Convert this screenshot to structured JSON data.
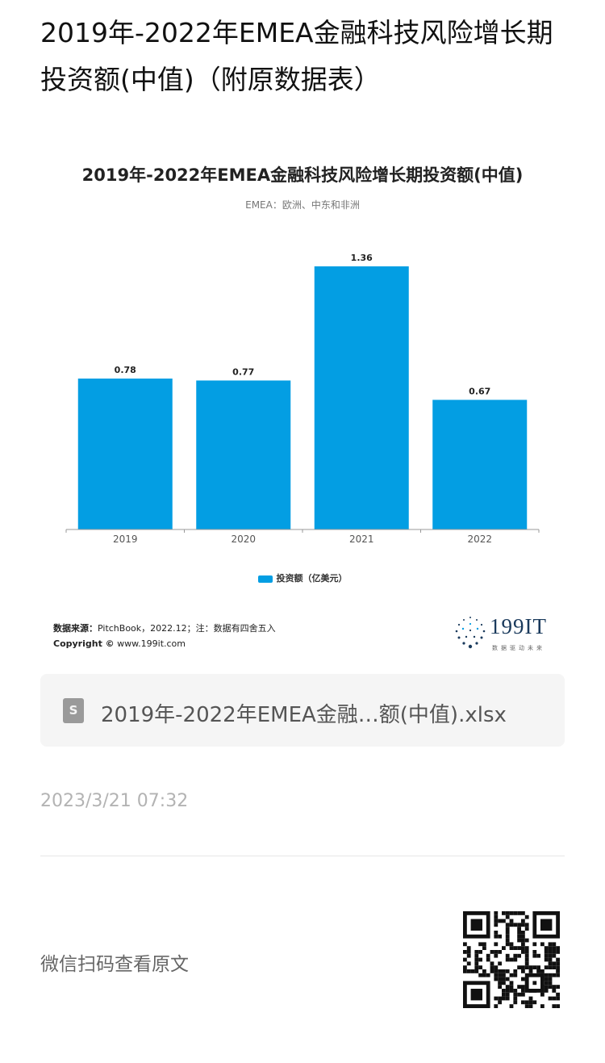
{
  "article": {
    "title": "2019年-2022年EMEA金融科技风险增长期投资额(中值)（附原数据表）"
  },
  "chart_data": {
    "type": "bar",
    "title": "2019年-2022年EMEA金融科技风险增长期投资额(中值)",
    "subtitle": "EMEA：欧洲、中东和非洲",
    "categories": [
      "2019",
      "2020",
      "2021",
      "2022"
    ],
    "series": [
      {
        "name": "投资额（亿美元）",
        "values": [
          0.78,
          0.77,
          1.36,
          0.67
        ],
        "color": "#039ee3"
      }
    ],
    "ylim": [
      0,
      1.36
    ],
    "grid": false,
    "legend": "bottom-center",
    "data_labels": [
      "0.78",
      "0.77",
      "1.36",
      "0.67"
    ]
  },
  "chart_footer": {
    "source_label": "数据来源：",
    "source_text": "PitchBook，2022.12；注：数据有四舍五入",
    "copyright_label": "Copyright ©",
    "copyright_text": " www.199it.com",
    "logo_text": "199IT",
    "logo_tagline": "数据驱动未来"
  },
  "attachment": {
    "icon": "spreadsheet-file-icon",
    "icon_glyph": "S",
    "file_name": "2019年-2022年EMEA金融…额(中值).xlsx"
  },
  "meta": {
    "publish_time": "2023/3/21 07:32",
    "scan_label": "微信扫码查看原文"
  },
  "colors": {
    "bar": "#039ee3",
    "card_background": "#f5f5f5",
    "muted_text": "#b3b3b3"
  }
}
